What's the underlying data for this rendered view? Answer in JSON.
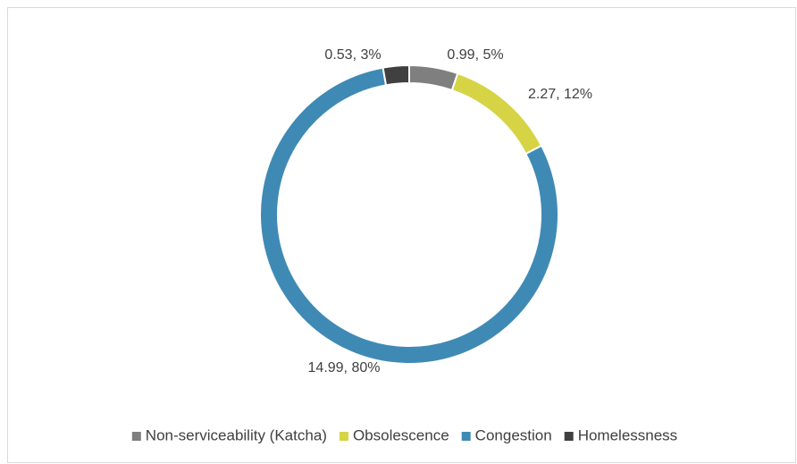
{
  "chart_data": {
    "type": "donut",
    "categories": [
      "Non-serviceability (Katcha)",
      "Obsolescence",
      "Congestion",
      "Homelessness"
    ],
    "values": [
      0.99,
      2.27,
      14.99,
      0.53
    ],
    "value_labels": [
      "0.99, 5%",
      "2.27, 12%",
      "14.99, 80%",
      "0.53, 3%"
    ],
    "colors": [
      "#7f7f7f",
      "#d6d444",
      "#3f8ab5",
      "#404040"
    ],
    "legend": "bottom"
  }
}
